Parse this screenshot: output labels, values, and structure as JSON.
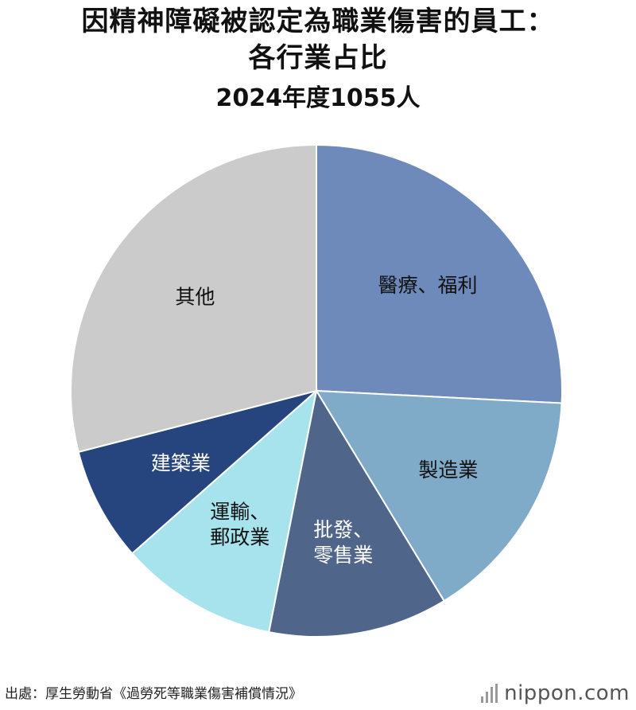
{
  "header": {
    "title_line1": "因精神障礙被認定為職業傷害的員工：",
    "title_line2": "各行業占比",
    "subtitle": "2024年度1055人"
  },
  "chart_data": {
    "type": "pie",
    "title": "因精神障礙被認定為職業傷害的員工：各行業占比",
    "subtitle": "2024年度1055人",
    "start_angle_deg": 0,
    "direction": "clockwise",
    "slices": [
      {
        "label_lines": [
          "醫療、福利"
        ],
        "value": 25.8,
        "color": "#6e8aba",
        "text_color": "#111111"
      },
      {
        "label_lines": [
          "製造業"
        ],
        "value": 15.5,
        "color": "#7fabc8",
        "text_color": "#111111"
      },
      {
        "label_lines": [
          "批發、",
          "零售業"
        ],
        "value": 11.8,
        "color": "#50658a",
        "text_color": "#ffffff"
      },
      {
        "label_lines": [
          "運輸、",
          "郵政業"
        ],
        "value": 10.4,
        "color": "#a6e3ec",
        "text_color": "#111111"
      },
      {
        "label_lines": [
          "建築業"
        ],
        "value": 7.5,
        "color": "#26457f",
        "text_color": "#ffffff"
      },
      {
        "label_lines": [
          "其他"
        ],
        "value": 29.0,
        "color": "#cbcbcb",
        "text_color": "#111111"
      }
    ]
  },
  "footer": {
    "source": "出處：厚生勞動省《過勞死等職業傷害補償情況》",
    "brand": "nippon.com"
  }
}
